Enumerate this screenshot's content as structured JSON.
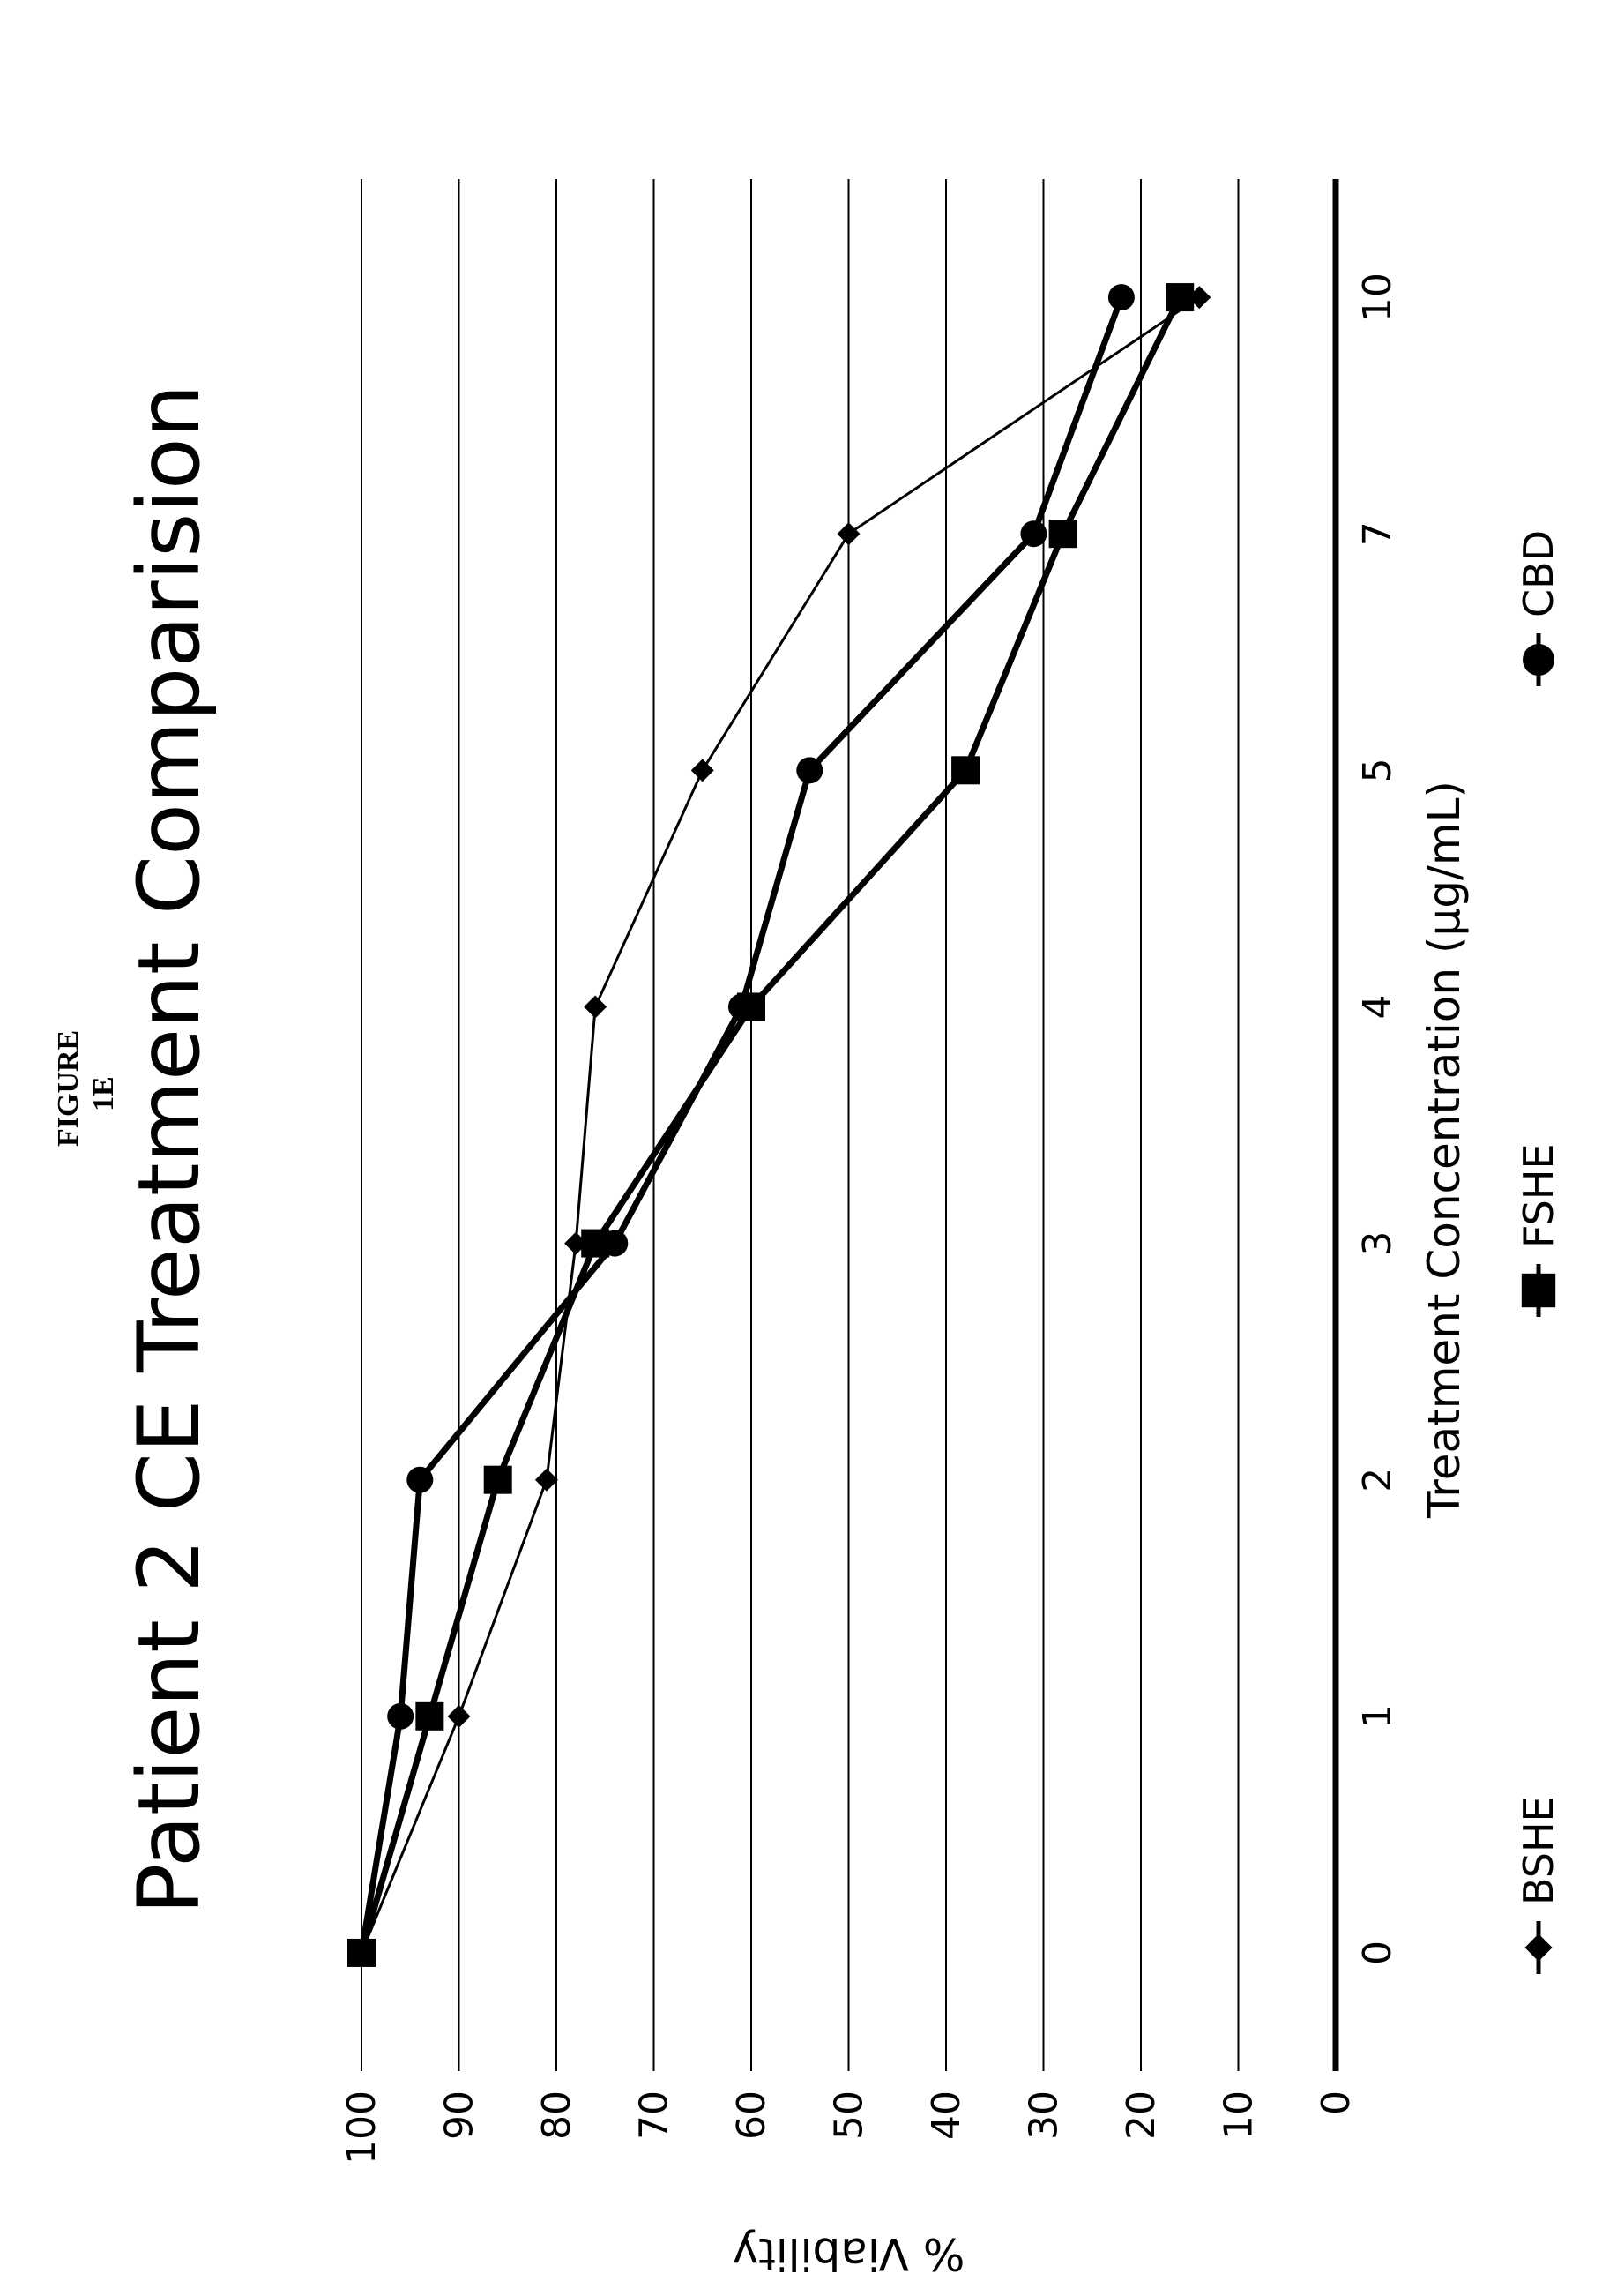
{
  "figure_label": "FIGURE 1E",
  "chart_data": {
    "type": "line",
    "title": "Patient 2 CE Treatment Comparision",
    "xlabel": "Treatment Concentration (µg/mL)",
    "ylabel": "% Viability",
    "categories": [
      "0",
      "1",
      "2",
      "3",
      "4",
      "5",
      "7",
      "10"
    ],
    "yticks": [
      "0",
      "10",
      "20",
      "30",
      "40",
      "50",
      "60",
      "70",
      "80",
      "90",
      "100"
    ],
    "ylim": [
      0,
      100
    ],
    "grid": true,
    "legend_position": "bottom",
    "series": [
      {
        "name": "BSHE",
        "marker": "diamond",
        "values": [
          100,
          90,
          81,
          78,
          76,
          65,
          50,
          14
        ]
      },
      {
        "name": "FSHE",
        "marker": "square",
        "values": [
          100,
          93,
          86,
          76,
          60,
          38,
          28,
          16
        ]
      },
      {
        "name": "CBD",
        "marker": "circle",
        "values": [
          100,
          96,
          94,
          74,
          61,
          54,
          31,
          22
        ]
      }
    ]
  }
}
